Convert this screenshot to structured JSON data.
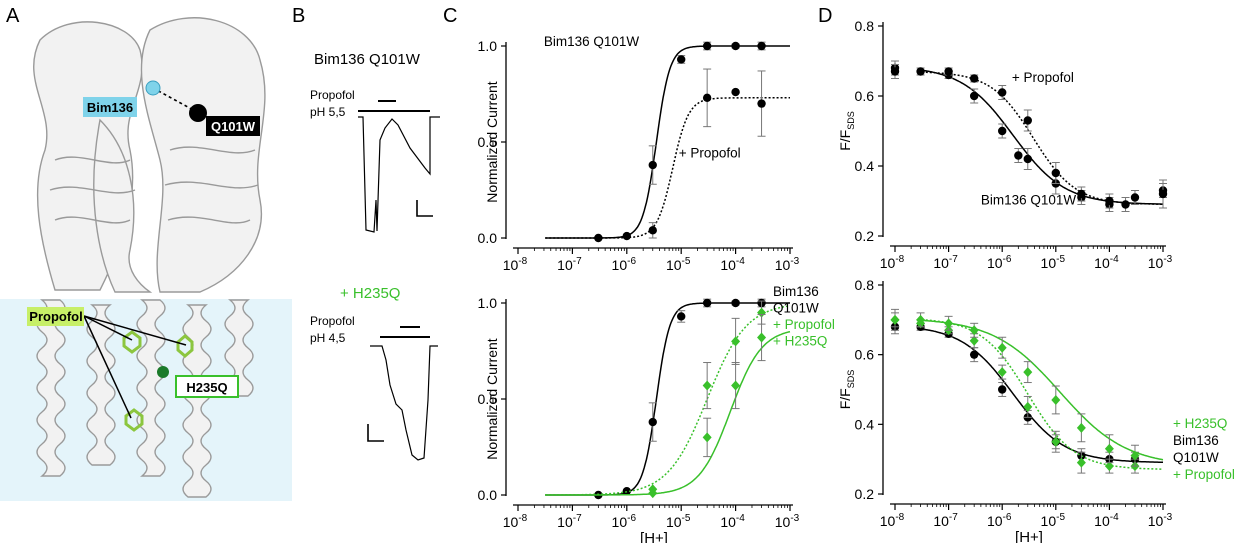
{
  "colors": {
    "black": "#000000",
    "green": "#39c02b",
    "bim136": "#7fd3ea",
    "membrane": "#e4f4fa",
    "propofol_label": "#c7ef68",
    "protein": "#f2f2f2"
  },
  "panel_a": {
    "letter": "A",
    "label_bim136": "Bim136",
    "label_q101w": "Q101W",
    "label_propofol": "Propofol",
    "label_h235q": "H235Q"
  },
  "panel_b": {
    "letter": "B",
    "title_top": "Bim136 Q101W",
    "top_line1": "Propofol",
    "top_line2": "pH 5,5",
    "title_bottom": "+ H235Q",
    "bottom_line1": "Propofol",
    "bottom_line2": "pH 4,5"
  },
  "panel_c": {
    "letter": "C"
  },
  "panel_d": {
    "letter": "D"
  },
  "chart_data": [
    {
      "id": "C-top",
      "type": "scatter",
      "xscale": "log",
      "xlim": [
        "1e-8",
        "1e-3"
      ],
      "ylim": [
        0,
        1.0
      ],
      "ylabel": "Normalized Current",
      "xlabel": "",
      "yticks": [
        "0.0",
        "0.5",
        "1.0"
      ],
      "xticks": [
        {
          "b": "10",
          "e": "-8"
        },
        {
          "b": "10",
          "e": "-7"
        },
        {
          "b": "10",
          "e": "-6"
        },
        {
          "b": "10",
          "e": "-5"
        },
        {
          "b": "10",
          "e": "-4"
        },
        {
          "b": "10",
          "e": "-3"
        }
      ],
      "annotations": [
        {
          "text": "Bim136 Q101W",
          "color": "#000000",
          "at": [
            3.2e-07,
            1.0
          ]
        },
        {
          "text": "+ Propofol",
          "color": "#000000",
          "at": [
            9e-06,
            0.42
          ]
        }
      ],
      "series": [
        {
          "marker": "circle",
          "color": "#000000",
          "line": "solid",
          "x": [
            "3e-7",
            "1e-6",
            "3e-6",
            "1e-5",
            "3e-5",
            "1e-4",
            "3e-4"
          ],
          "y": [
            0.0,
            0.01,
            0.38,
            0.93,
            1.0,
            1.0,
            1.0
          ],
          "err": [
            0,
            0,
            0.1,
            0.02,
            0.02,
            0.01,
            0.02
          ],
          "fit": {
            "ec50": "3.5e-6",
            "n": 3.5,
            "max": 1.0
          }
        },
        {
          "marker": "circle",
          "color": "#000000",
          "line": "dotted",
          "x": [
            "3e-6",
            "3e-5",
            "1e-4",
            "3e-4"
          ],
          "y": [
            0.04,
            0.73,
            0.76,
            0.7
          ],
          "err": [
            0.04,
            0.15,
            0,
            0.17
          ],
          "fit": {
            "ec50": "7e-6",
            "n": 3.0,
            "max": 0.73
          }
        }
      ]
    },
    {
      "id": "C-bottom",
      "type": "scatter",
      "xscale": "log",
      "xlim": [
        "1e-8",
        "1e-3"
      ],
      "ylim": [
        0,
        1.0
      ],
      "ylabel": "Normalized Current",
      "xlabel": "[H+]",
      "yticks": [
        "0.0",
        "0.5",
        "1.0"
      ],
      "xticks": [
        {
          "b": "10",
          "e": "-8"
        },
        {
          "b": "10",
          "e": "-7"
        },
        {
          "b": "10",
          "e": "-6"
        },
        {
          "b": "10",
          "e": "-5"
        },
        {
          "b": "10",
          "e": "-4"
        },
        {
          "b": "10",
          "e": "-3"
        }
      ],
      "legend": [
        {
          "text": "Bim136",
          "color": "#000000"
        },
        {
          "text": "Q101W",
          "color": "#000000"
        },
        {
          "text": "+ Propofol",
          "color": "#39c02b"
        },
        {
          "text": "+ H235Q",
          "color": "#39c02b"
        }
      ],
      "series": [
        {
          "marker": "circle",
          "color": "#000000",
          "line": "solid",
          "x": [
            "3e-7",
            "1e-6",
            "3e-6",
            "1e-5",
            "3e-5",
            "1e-4",
            "3e-4"
          ],
          "y": [
            0.0,
            0.02,
            0.38,
            0.93,
            1.0,
            1.0,
            1.0
          ],
          "err": [
            0,
            0,
            0.1,
            0.03,
            0.02,
            0.01,
            0.02
          ],
          "fit": {
            "ec50": "3.5e-6",
            "n": 3.5,
            "max": 1.0
          }
        },
        {
          "marker": "diamond",
          "color": "#39c02b",
          "line": "dotted",
          "x": [
            "3e-6",
            "3e-5",
            "1e-4",
            "3e-4"
          ],
          "y": [
            0.03,
            0.57,
            0.8,
            0.95
          ],
          "err": [
            0,
            0.12,
            0.12,
            0.06
          ],
          "fit": {
            "ec50": "3e-5",
            "n": 1.2,
            "max": 1.0
          }
        },
        {
          "marker": "diamond",
          "color": "#39c02b",
          "line": "solid",
          "x": [
            "3e-6",
            "3e-5",
            "1e-4",
            "3e-4"
          ],
          "y": [
            0.01,
            0.3,
            0.57,
            0.82
          ],
          "err": [
            0,
            0.1,
            0.12,
            0.12
          ],
          "fit": {
            "ec50": "8e-5",
            "n": 1.5,
            "max": 0.87
          }
        }
      ]
    },
    {
      "id": "D-top",
      "type": "scatter",
      "xscale": "log",
      "xlim": [
        "1e-8",
        "1e-3"
      ],
      "ylim": [
        0.2,
        0.8
      ],
      "ylabel": "F/F",
      "ylabel_sub": "SDS",
      "xlabel": "",
      "yticks": [
        "0.2",
        "0.4",
        "0.6",
        "0.8"
      ],
      "xticks": [
        {
          "b": "10",
          "e": "-8"
        },
        {
          "b": "10",
          "e": "-7"
        },
        {
          "b": "10",
          "e": "-6"
        },
        {
          "b": "10",
          "e": "-5"
        },
        {
          "b": "10",
          "e": "-4"
        },
        {
          "b": "10",
          "e": "-3"
        }
      ],
      "annotations": [
        {
          "text": "+ Propofol",
          "color": "#000000",
          "at": [
            2e-05,
            0.64
          ]
        },
        {
          "text": "Bim136  Q101W",
          "color": "#000000",
          "at": [
            4e-07,
            0.29
          ]
        }
      ],
      "series": [
        {
          "marker": "circle",
          "color": "#000000",
          "line": "solid",
          "x": [
            "1e-8",
            "3e-8",
            "1e-7",
            "3e-7",
            "1e-6",
            "2e-6",
            "3e-6",
            "1e-5",
            "3e-5",
            "1e-4",
            "2e-4",
            "1e-3"
          ],
          "y": [
            0.68,
            0.67,
            0.66,
            0.6,
            0.5,
            0.43,
            0.42,
            0.35,
            0.31,
            0.29,
            0.29,
            0.33
          ],
          "err": [
            0.02,
            0.01,
            0.01,
            0.02,
            0.02,
            0.02,
            0.03,
            0.03,
            0.02,
            0.02,
            0.02,
            0.02
          ],
          "fit": {
            "bottom": 0.29,
            "top": 0.685,
            "ec50": "1.6e-6",
            "n": 0.9
          }
        },
        {
          "marker": "circle",
          "color": "#000000",
          "line": "dotted",
          "x": [
            "1e-8",
            "1e-7",
            "3e-7",
            "1e-6",
            "3e-6",
            "1e-5",
            "3e-5",
            "1e-4",
            "3e-4",
            "1e-3"
          ],
          "y": [
            0.67,
            0.67,
            0.65,
            0.61,
            0.53,
            0.38,
            0.32,
            0.3,
            0.31,
            0.32
          ],
          "err": [
            0.02,
            0.01,
            0.01,
            0.02,
            0.03,
            0.03,
            0.02,
            0.02,
            0.02,
            0.04
          ],
          "fit": {
            "bottom": 0.29,
            "top": 0.67,
            "ec50": "3.8e-6",
            "n": 1.1
          }
        }
      ]
    },
    {
      "id": "D-bottom",
      "type": "scatter",
      "xscale": "log",
      "xlim": [
        "1e-8",
        "1e-3"
      ],
      "ylim": [
        0.2,
        0.8
      ],
      "ylabel": "F/F",
      "ylabel_sub": "SDS",
      "xlabel": "[H+]",
      "yticks": [
        "0.2",
        "0.4",
        "0.6",
        "0.8"
      ],
      "xticks": [
        {
          "b": "10",
          "e": "-8"
        },
        {
          "b": "10",
          "e": "-7"
        },
        {
          "b": "10",
          "e": "-6"
        },
        {
          "b": "10",
          "e": "-5"
        },
        {
          "b": "10",
          "e": "-4"
        },
        {
          "b": "10",
          "e": "-3"
        }
      ],
      "legend": [
        {
          "text": "+ H235Q",
          "color": "#39c02b"
        },
        {
          "text": "Bim136",
          "color": "#000000"
        },
        {
          "text": "Q101W",
          "color": "#000000"
        },
        {
          "text": "+ Propofol",
          "color": "#39c02b"
        }
      ],
      "series": [
        {
          "marker": "circle",
          "color": "#000000",
          "line": "solid",
          "x": [
            "1e-8",
            "3e-8",
            "1e-7",
            "3e-7",
            "1e-6",
            "3e-6",
            "1e-5",
            "3e-5",
            "1e-4",
            "3e-4"
          ],
          "y": [
            0.68,
            0.68,
            0.66,
            0.6,
            0.5,
            0.42,
            0.35,
            0.31,
            0.3,
            0.3
          ],
          "err": [
            0.02,
            0.01,
            0.01,
            0.02,
            0.02,
            0.02,
            0.02,
            0.02,
            0.02,
            0.02
          ],
          "fit": {
            "bottom": 0.29,
            "top": 0.685,
            "ec50": "1.6e-6",
            "n": 0.9
          }
        },
        {
          "marker": "diamond",
          "color": "#39c02b",
          "line": "dotted",
          "x": [
            "1e-8",
            "3e-8",
            "1e-7",
            "3e-7",
            "1e-6",
            "3e-6",
            "1e-5",
            "3e-5",
            "1e-4",
            "3e-4"
          ],
          "y": [
            0.7,
            0.69,
            0.67,
            0.64,
            0.55,
            0.45,
            0.35,
            0.29,
            0.28,
            0.28
          ],
          "err": [
            0.02,
            0.01,
            0.01,
            0.02,
            0.02,
            0.03,
            0.03,
            0.03,
            0.02,
            0.02
          ],
          "fit": {
            "bottom": 0.27,
            "top": 0.705,
            "ec50": "3e-6",
            "n": 1.0
          }
        },
        {
          "marker": "diamond",
          "color": "#39c02b",
          "line": "solid",
          "x": [
            "1e-8",
            "3e-8",
            "1e-7",
            "3e-7",
            "1e-6",
            "3e-6",
            "1e-5",
            "3e-5",
            "1e-4",
            "3e-4"
          ],
          "y": [
            0.7,
            0.7,
            0.69,
            0.67,
            0.62,
            0.55,
            0.47,
            0.39,
            0.33,
            0.31
          ],
          "err": [
            0.03,
            0.02,
            0.02,
            0.02,
            0.03,
            0.03,
            0.04,
            0.04,
            0.04,
            0.03
          ],
          "fit": {
            "bottom": 0.28,
            "top": 0.705,
            "ec50": "1.2e-5",
            "n": 0.7
          }
        }
      ]
    }
  ]
}
